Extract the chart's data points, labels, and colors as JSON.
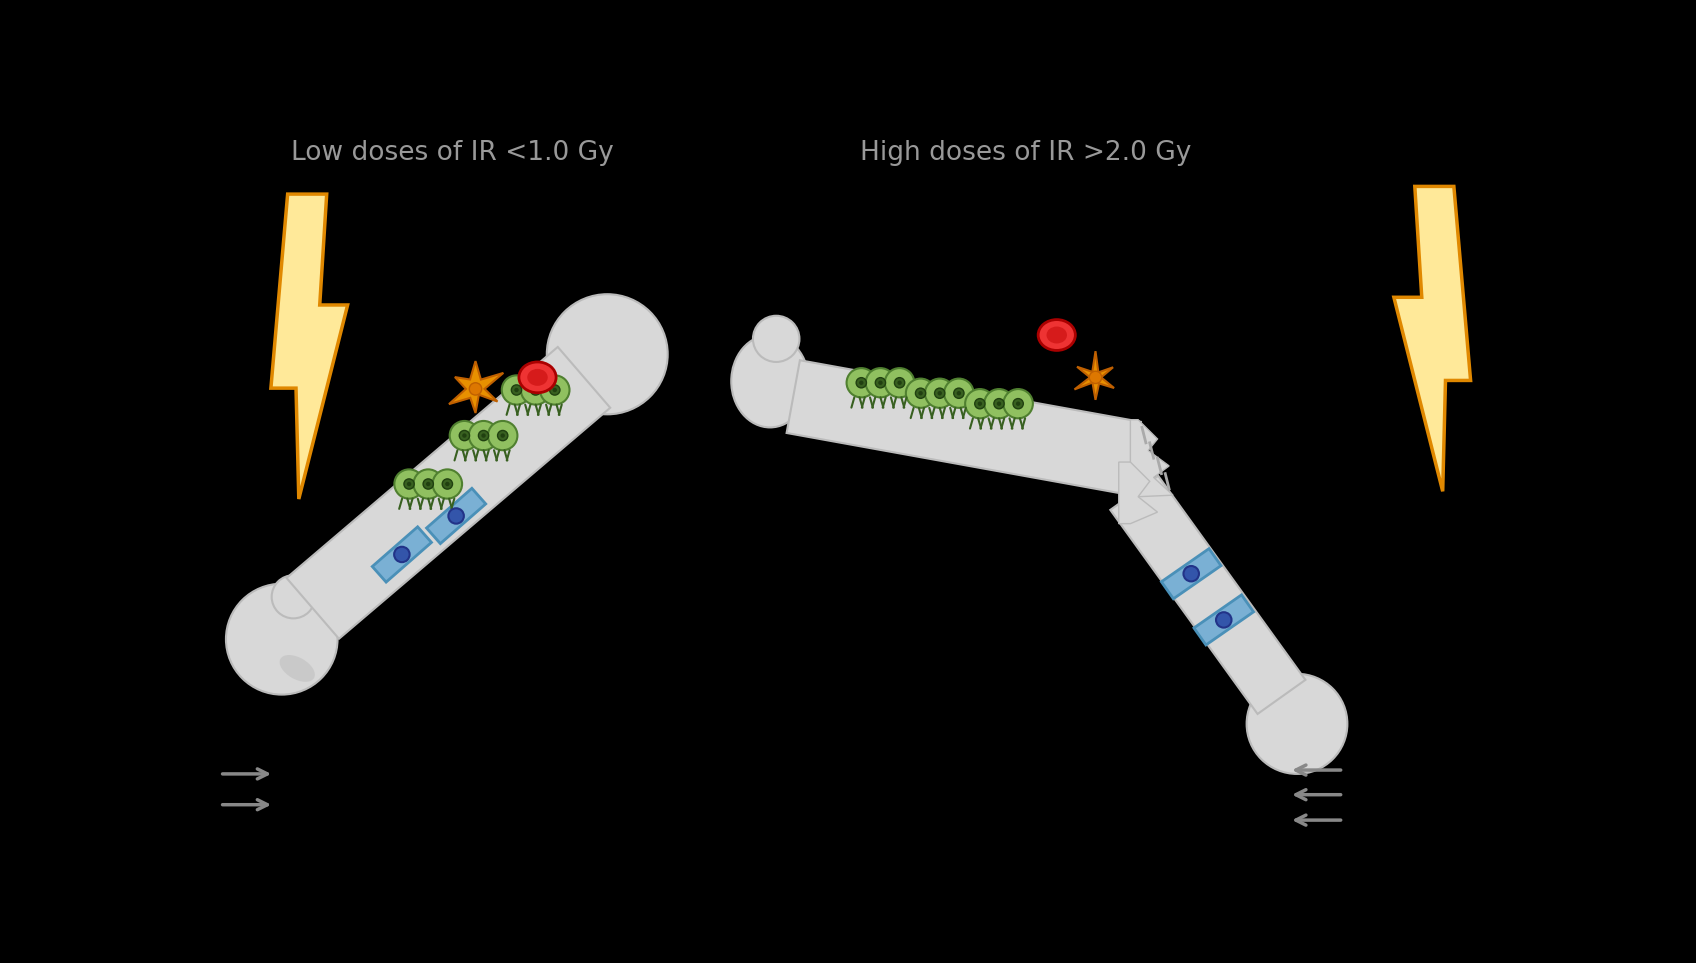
{
  "background_color": "#000000",
  "title_left": "Low doses of IR <1.0 Gy",
  "title_right": "High doses of IR >2.0 Gy",
  "title_color": "#999999",
  "title_fontsize": 19,
  "bone_color": "#d8d8d8",
  "bone_edge_color": "#bbbbbb",
  "ob_color": "#7ab0d4",
  "ob_edge_color": "#4a90b8",
  "oc_color": "#90c060",
  "oc_edge_color": "#508030",
  "nucleus_color": "#3355aa",
  "lightning_fill": "#ffe999",
  "lightning_edge": "#e08800",
  "star_color": "#e89000",
  "star_edge": "#c06000",
  "cell_red_fill": "#ee3333",
  "cell_red_edge": "#aa0000",
  "arrow_color": "#888888"
}
